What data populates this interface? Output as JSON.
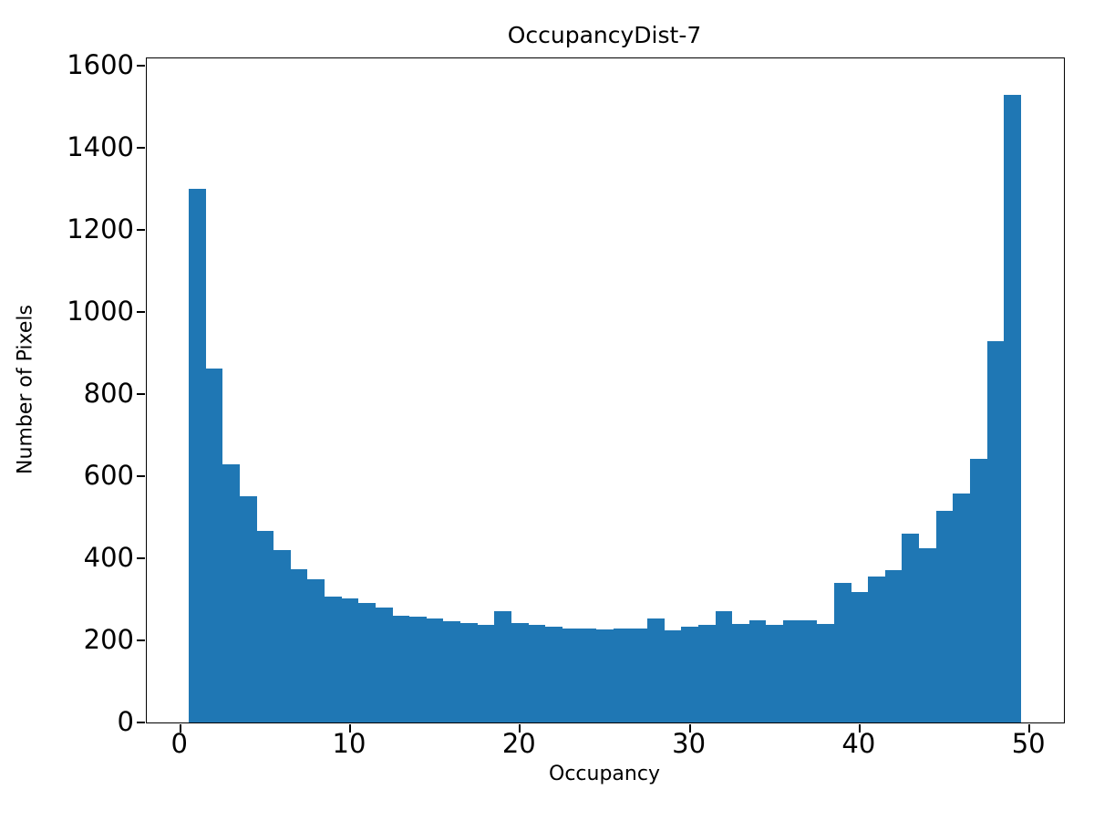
{
  "chart_data": {
    "type": "bar",
    "subtype": "histogram",
    "title": "OccupancyDist-7",
    "xlabel": "Occupancy",
    "ylabel": "Number of Pixels",
    "bar_color": "#1f77b4",
    "grid": false,
    "legend": null,
    "bin_start": 0.5,
    "bin_width": 1,
    "xlim": [
      -1.97,
      52.03
    ],
    "ylim": [
      0,
      1618
    ],
    "xticks": [
      0,
      10,
      20,
      30,
      40,
      50
    ],
    "yticks": [
      0,
      200,
      400,
      600,
      800,
      1000,
      1200,
      1400,
      1600
    ],
    "bin_centers": [
      1,
      2,
      3,
      4,
      5,
      6,
      7,
      8,
      9,
      10,
      11,
      12,
      13,
      14,
      15,
      16,
      17,
      18,
      19,
      20,
      21,
      22,
      23,
      24,
      25,
      26,
      27,
      28,
      29,
      30,
      31,
      32,
      33,
      34,
      35,
      36,
      37,
      38,
      39,
      40,
      41,
      42,
      43,
      44,
      45,
      46,
      47,
      48,
      49
    ],
    "values": [
      1300,
      862,
      628,
      552,
      466,
      419,
      373,
      350,
      307,
      303,
      291,
      280,
      260,
      258,
      253,
      247,
      242,
      238,
      272,
      243,
      238,
      233,
      229,
      230,
      226,
      228,
      229,
      253,
      224,
      234,
      238,
      272,
      239,
      250,
      237,
      248,
      250,
      240,
      341,
      317,
      355,
      372,
      460,
      425,
      515,
      557,
      643,
      929,
      1530
    ]
  }
}
